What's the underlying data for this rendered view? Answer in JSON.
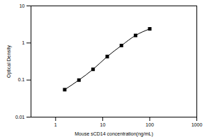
{
  "chart_data": {
    "type": "line",
    "x_label": "Mouse sCD14 concentration(ng/mL)",
    "y_label": "Optical Density",
    "x": [
      1.56,
      3.13,
      6.25,
      12.5,
      25,
      50,
      100
    ],
    "values": [
      0.055,
      0.1,
      0.195,
      0.43,
      0.85,
      1.6,
      2.4
    ],
    "color": "#000000",
    "marker": "square",
    "line_style": "solid",
    "log": true,
    "xlim": [
      0.3,
      1000
    ],
    "xticks": [
      1,
      10,
      100,
      1000
    ],
    "ylim": [
      0.01,
      10
    ],
    "yticks": [
      0.01,
      0.1,
      1,
      10
    ],
    "grid": false
  }
}
